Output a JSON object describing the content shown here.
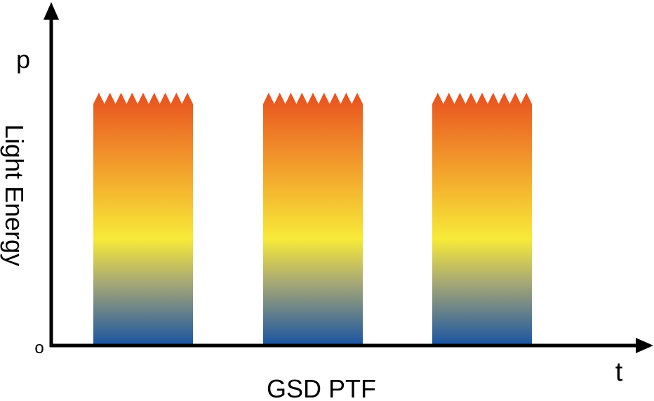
{
  "axis_labels": {
    "y_top": "p",
    "y": "Light Energy",
    "origin": "o",
    "x": "t"
  },
  "caption": "GSD PTF"
}
